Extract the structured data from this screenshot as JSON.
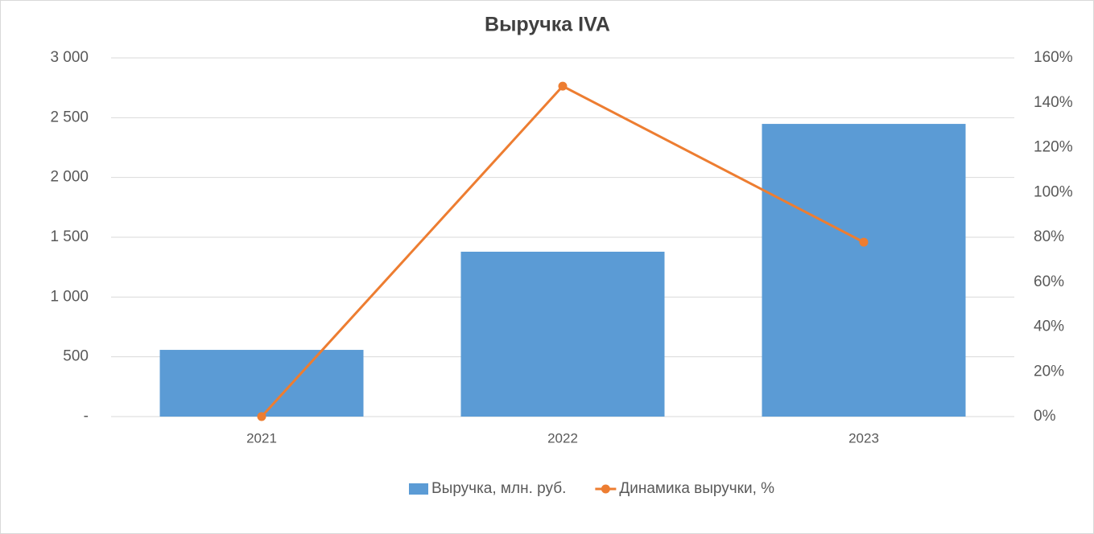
{
  "chart_data": {
    "type": "bar-line",
    "title": "Выручка IVA",
    "categories": [
      "2021",
      "2022",
      "2023"
    ],
    "series": [
      {
        "name": "Выручка, млн. руб.",
        "type": "bar",
        "color": "#5b9bd5",
        "values": [
          558,
          1379,
          2448
        ]
      },
      {
        "name": "Динамика выручки, %",
        "type": "line",
        "color": "#ed7d31",
        "axis": "y2",
        "values": [
          0,
          147.4,
          77.8
        ]
      }
    ],
    "ylim": [
      0,
      3000
    ],
    "yticks": [
      {
        "value": 0,
        "label": "-"
      },
      500,
      {
        "value": 1000,
        "label": "1 000"
      },
      {
        "value": 1500,
        "label": "1 500"
      },
      {
        "value": 2000,
        "label": "2 000"
      },
      {
        "value": 2500,
        "label": "2 500"
      },
      {
        "value": 3000,
        "label": "3 000"
      }
    ],
    "y2lim": [
      0,
      160
    ],
    "y2ticks": [
      {
        "value": 0,
        "label": "0%"
      },
      {
        "value": 20,
        "label": "20%"
      },
      {
        "value": 40,
        "label": "40%"
      },
      {
        "value": 60,
        "label": "60%"
      },
      {
        "value": 80,
        "label": "80%"
      },
      {
        "value": 100,
        "label": "100%"
      },
      {
        "value": 120,
        "label": "120%"
      },
      {
        "value": 140,
        "label": "140%"
      },
      {
        "value": 160,
        "label": "160%"
      }
    ],
    "grid": true,
    "legend": "bottom"
  }
}
